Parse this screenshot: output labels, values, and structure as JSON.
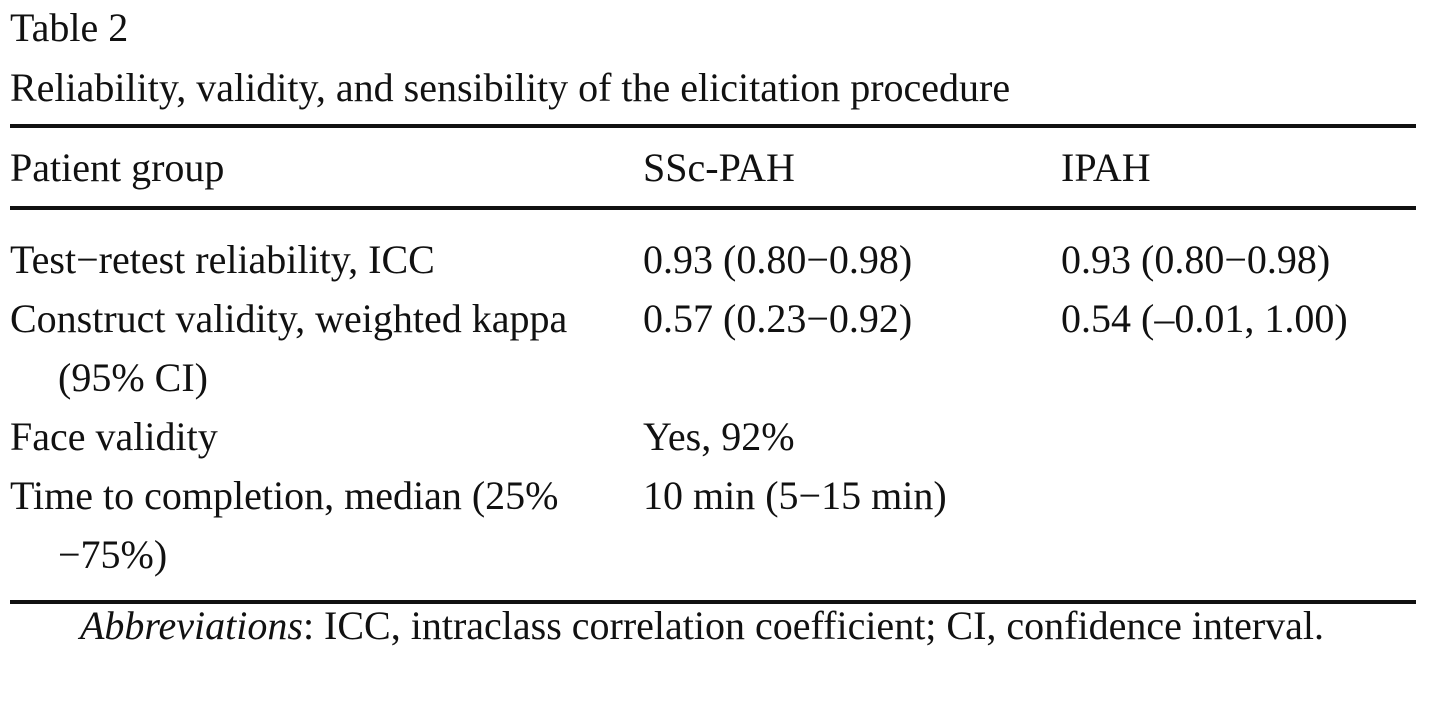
{
  "table": {
    "label": "Table 2",
    "caption": "Reliability, validity, and sensibility of the elicitation procedure",
    "header": [
      "Patient group",
      "SSc-PAH",
      "IPAH"
    ],
    "rows": [
      [
        "Test−retest reliability, ICC",
        "0.93 (0.80−0.98)",
        "0.93 (0.80−0.98)"
      ],
      [
        "Construct validity, weighted kappa (95% CI)",
        "0.57 (0.23−0.92)",
        "0.54 (–0.01, 1.00)"
      ],
      [
        "Face validity",
        "Yes, 92%"
      ],
      [
        "Time to completion, median (25%−75%)",
        "10 min (5−15 min)"
      ]
    ],
    "footnote": {
      "label": "Abbreviations",
      "text": ": ICC, intraclass correlation coefficient; CI, confidence interval."
    }
  }
}
